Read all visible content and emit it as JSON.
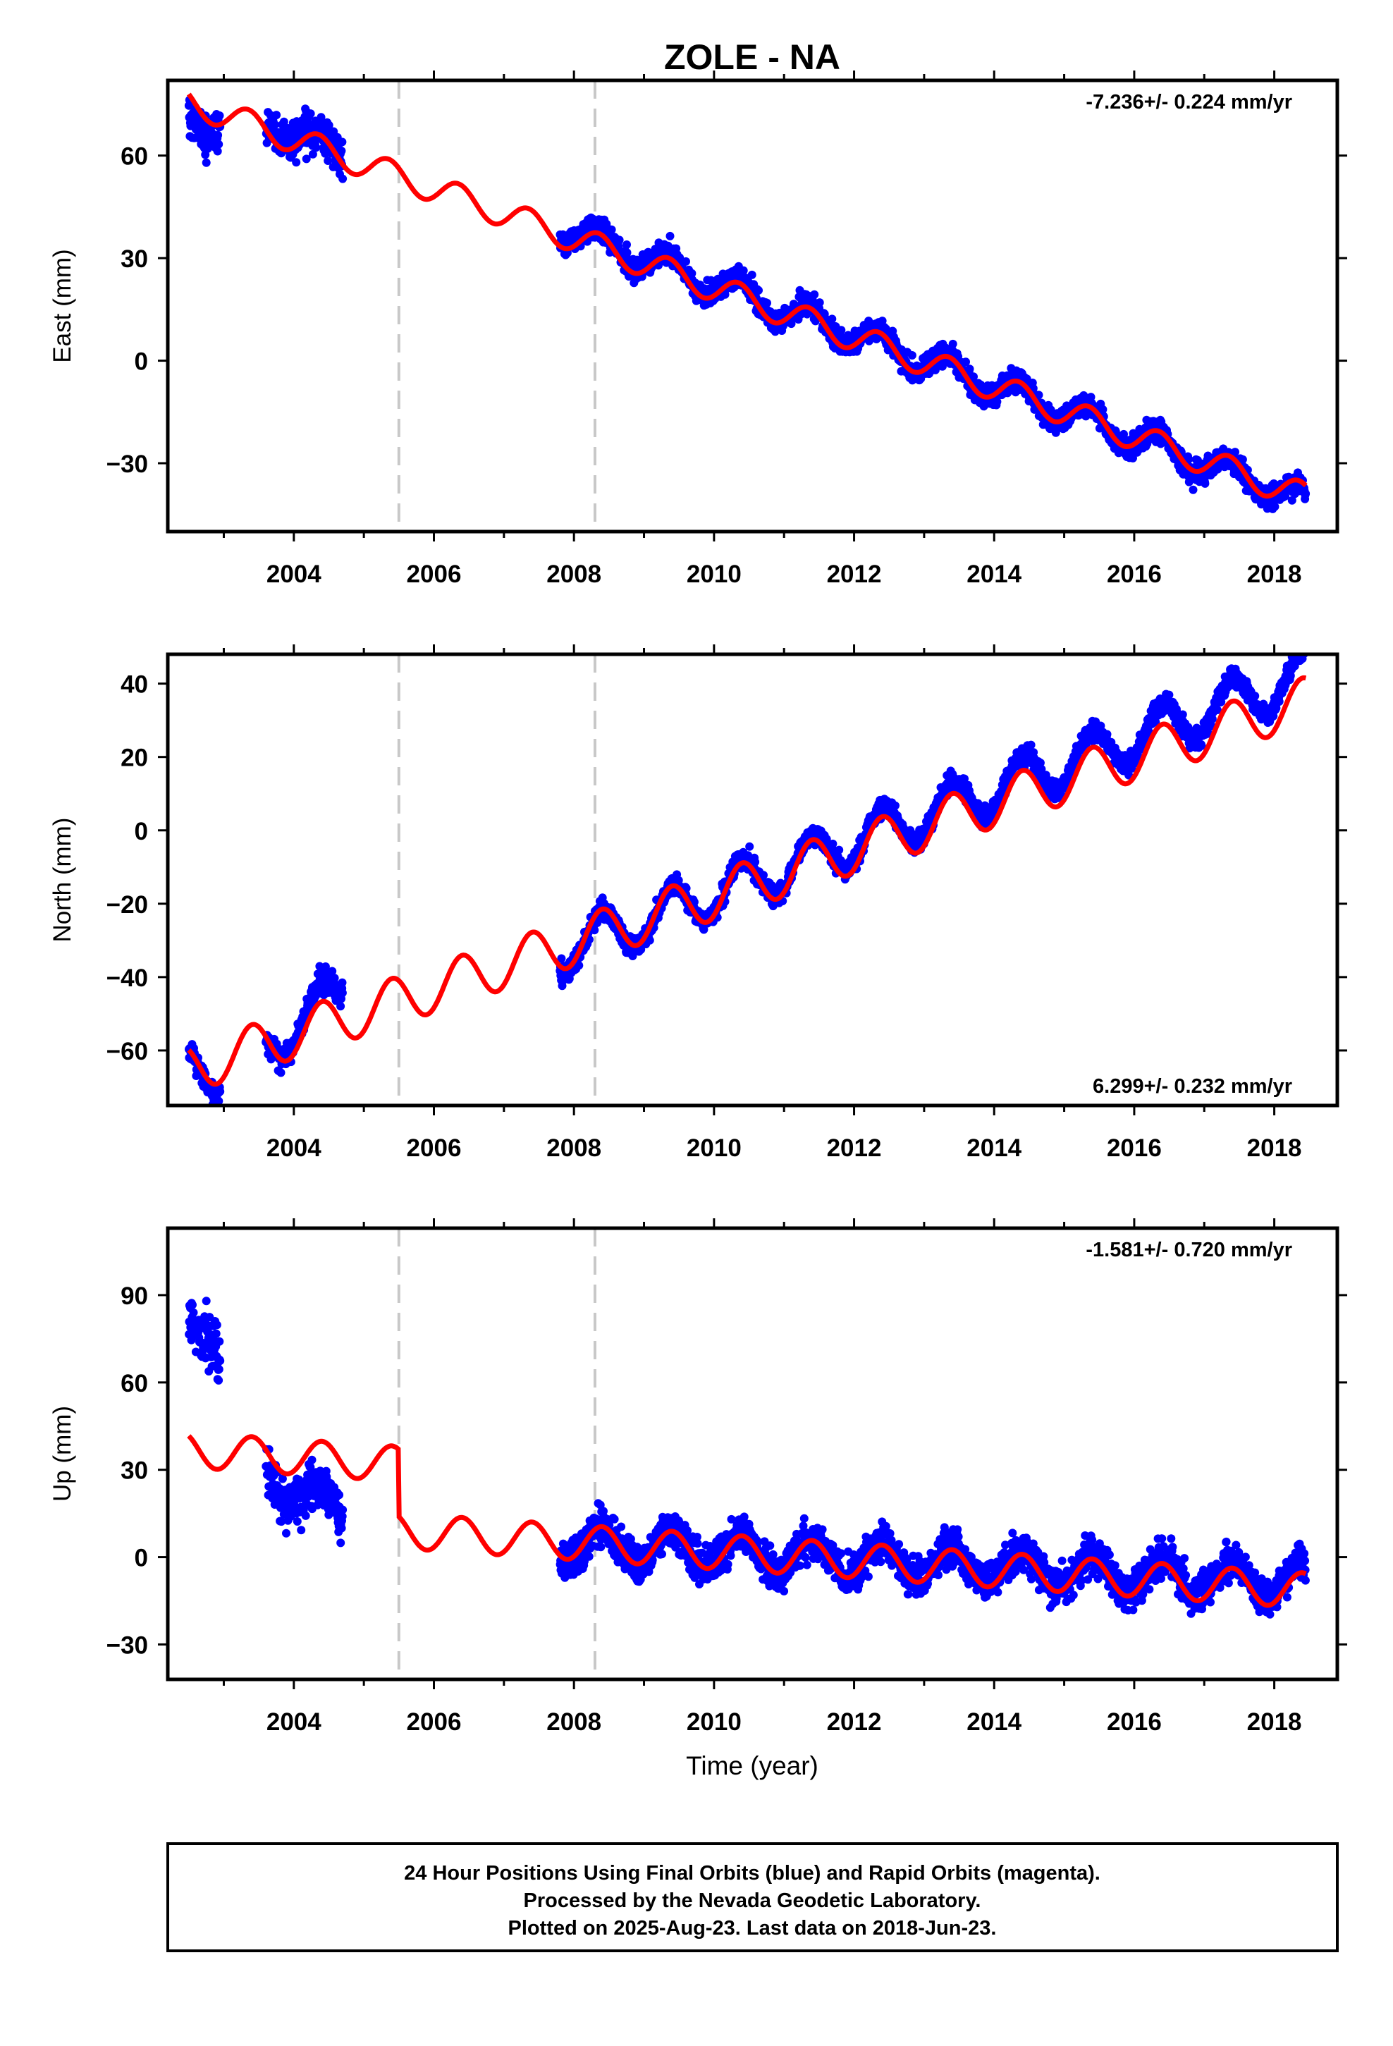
{
  "chart_data": {
    "type": "scatter",
    "title": "ZOLE - NA",
    "xlabel": "Time (year)",
    "xlim": [
      2002.2,
      2018.9
    ],
    "xticks": [
      2004,
      2006,
      2008,
      2010,
      2012,
      2014,
      2016,
      2018
    ],
    "steps": [
      2005.5,
      2008.3
    ],
    "colors": {
      "data": "#0000ff",
      "model": "#ff0000",
      "steps": "#c8c8c8"
    },
    "panels": [
      {
        "name": "east",
        "ylabel": "East (mm)",
        "ylim": [
          -50,
          82
        ],
        "yticks": [
          -30,
          0,
          30,
          60
        ],
        "rate_text": "-7.236+/- 0.224 mm/yr",
        "rate_position": "top-right",
        "model": {
          "intercept_2003": 72,
          "rate": -7.236,
          "amplitude": 4,
          "phase": 0.1,
          "offsets": []
        },
        "observations": [
          {
            "from": 2002.5,
            "to": 2002.95,
            "base": 68,
            "slope": 6,
            "noise": 6
          },
          {
            "from": 2003.6,
            "to": 2004.7,
            "base": 70,
            "slope": -9,
            "noise": 5
          },
          {
            "from": 2007.8,
            "to": 2018.45,
            "base": 39,
            "slope": -7.5,
            "noise": 3.2
          }
        ]
      },
      {
        "name": "north",
        "ylabel": "North (mm)",
        "ylim": [
          -75,
          48
        ],
        "yticks": [
          -60,
          -40,
          -20,
          0,
          20,
          40
        ],
        "rate_text": "6.299+/- 0.232 mm/yr",
        "rate_position": "bottom-right",
        "model": {
          "intercept_2003": -62,
          "rate": 6.299,
          "amplitude": 6.5,
          "phase": 0.15,
          "offsets": []
        },
        "observations": [
          {
            "from": 2002.5,
            "to": 2002.95,
            "base": -65,
            "slope": 0,
            "noise": 3
          },
          {
            "from": 2003.6,
            "to": 2004.7,
            "base": -59,
            "slope": 14,
            "noise": 3
          },
          {
            "from": 2007.8,
            "to": 2018.45,
            "base": -33,
            "slope": 7.1,
            "noise": 2.5
          }
        ]
      },
      {
        "name": "up",
        "ylabel": "Up (mm)",
        "ylim": [
          -42,
          113
        ],
        "yticks": [
          -30,
          0,
          30,
          60,
          90
        ],
        "rate_text": "-1.581+/- 0.720 mm/yr",
        "rate_position": "top-right",
        "model": {
          "intercept_2003": 36,
          "rate": -1.581,
          "amplitude": 6,
          "phase": 0.15,
          "offsets": [
            {
              "at": 2005.5,
              "value": -23
            }
          ]
        },
        "observations": [
          {
            "from": 2002.5,
            "to": 2002.95,
            "base": 78,
            "slope": 0,
            "noise": 9
          },
          {
            "from": 2003.6,
            "to": 2004.7,
            "base": 28,
            "slope": -12,
            "noise": 7
          },
          {
            "from": 2007.8,
            "to": 2018.45,
            "base": 5,
            "slope": -1.3,
            "noise": 6
          }
        ]
      }
    ]
  },
  "footer": {
    "line1": "24 Hour Positions Using Final Orbits (blue) and Rapid Orbits (magenta).",
    "line2": "Processed by the Nevada Geodetic Laboratory.",
    "line3": "Plotted on 2025-Aug-23. Last data on 2018-Jun-23."
  }
}
